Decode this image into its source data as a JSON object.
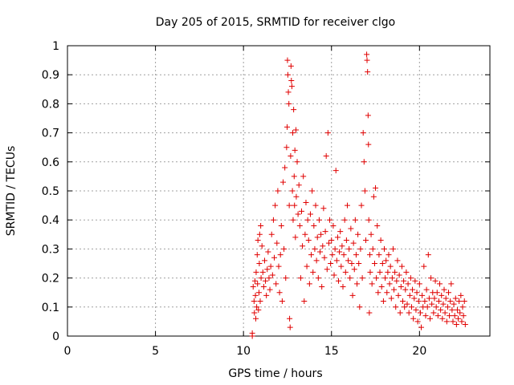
{
  "chart_data": {
    "type": "scatter",
    "title": "Day 205 of 2015, SRMTID for receiver clgo",
    "xlabel": "GPS time / hours",
    "ylabel": "SRMTID / TECUs",
    "xlim": [
      0,
      24
    ],
    "ylim": [
      0,
      1
    ],
    "xticks": [
      0,
      5,
      10,
      15,
      20
    ],
    "xtick_labels": [
      "0",
      "5",
      "10",
      "15",
      "20"
    ],
    "yticks": [
      0,
      0.1,
      0.2,
      0.3,
      0.4,
      0.5,
      0.6,
      0.7,
      0.8,
      0.9,
      1
    ],
    "ytick_labels": [
      "0",
      "0.1",
      "0.2",
      "0.3",
      "0.4",
      "0.5",
      "0.6",
      "0.7",
      "0.8",
      "0.9",
      "1"
    ],
    "grid": true,
    "marker": "plus",
    "color": "#e00000",
    "series": [
      {
        "name": "SRMTID",
        "points": [
          [
            10.5,
            0.0
          ],
          [
            10.5,
            0.01
          ],
          [
            10.55,
            0.17
          ],
          [
            10.6,
            0.12
          ],
          [
            10.62,
            0.08
          ],
          [
            10.65,
            0.19
          ],
          [
            10.68,
            0.14
          ],
          [
            10.7,
            0.06
          ],
          [
            10.72,
            0.22
          ],
          [
            10.75,
            0.1
          ],
          [
            10.78,
            0.28
          ],
          [
            10.8,
            0.18
          ],
          [
            10.82,
            0.33
          ],
          [
            10.85,
            0.09
          ],
          [
            10.88,
            0.15
          ],
          [
            10.9,
            0.25
          ],
          [
            10.92,
            0.35
          ],
          [
            10.95,
            0.12
          ],
          [
            10.98,
            0.38
          ],
          [
            11.0,
            0.2
          ],
          [
            11.05,
            0.31
          ],
          [
            11.1,
            0.22
          ],
          [
            11.15,
            0.17
          ],
          [
            11.2,
            0.26
          ],
          [
            11.25,
            0.19
          ],
          [
            11.3,
            0.14
          ],
          [
            11.35,
            0.23
          ],
          [
            11.4,
            0.29
          ],
          [
            11.45,
            0.2
          ],
          [
            11.5,
            0.16
          ],
          [
            11.55,
            0.24
          ],
          [
            11.6,
            0.35
          ],
          [
            11.65,
            0.21
          ],
          [
            11.7,
            0.4
          ],
          [
            11.75,
            0.27
          ],
          [
            11.8,
            0.45
          ],
          [
            11.85,
            0.18
          ],
          [
            11.9,
            0.32
          ],
          [
            11.95,
            0.5
          ],
          [
            12.0,
            0.24
          ],
          [
            12.05,
            0.15
          ],
          [
            12.1,
            0.28
          ],
          [
            12.15,
            0.38
          ],
          [
            12.2,
            0.12
          ],
          [
            12.25,
            0.53
          ],
          [
            12.3,
            0.3
          ],
          [
            12.35,
            0.58
          ],
          [
            12.4,
            0.2
          ],
          [
            12.45,
            0.65
          ],
          [
            12.48,
            0.72
          ],
          [
            12.5,
            0.95
          ],
          [
            12.52,
            0.9
          ],
          [
            12.55,
            0.84
          ],
          [
            12.58,
            0.8
          ],
          [
            12.6,
            0.45
          ],
          [
            12.62,
            0.06
          ],
          [
            12.65,
            0.03
          ],
          [
            12.68,
            0.62
          ],
          [
            12.7,
            0.93
          ],
          [
            12.72,
            0.88
          ],
          [
            12.75,
            0.86
          ],
          [
            12.78,
            0.5
          ],
          [
            12.8,
            0.7
          ],
          [
            12.82,
            0.4
          ],
          [
            12.85,
            0.78
          ],
          [
            12.88,
            0.55
          ],
          [
            12.9,
            0.45
          ],
          [
            12.92,
            0.64
          ],
          [
            12.95,
            0.34
          ],
          [
            12.98,
            0.71
          ],
          [
            13.0,
            0.48
          ],
          [
            13.05,
            0.6
          ],
          [
            13.1,
            0.42
          ],
          [
            13.15,
            0.52
          ],
          [
            13.2,
            0.38
          ],
          [
            13.25,
            0.2
          ],
          [
            13.3,
            0.43
          ],
          [
            13.35,
            0.31
          ],
          [
            13.4,
            0.55
          ],
          [
            13.45,
            0.12
          ],
          [
            13.5,
            0.35
          ],
          [
            13.55,
            0.46
          ],
          [
            13.6,
            0.24
          ],
          [
            13.65,
            0.4
          ],
          [
            13.7,
            0.33
          ],
          [
            13.75,
            0.18
          ],
          [
            13.8,
            0.42
          ],
          [
            13.85,
            0.28
          ],
          [
            13.9,
            0.5
          ],
          [
            13.95,
            0.22
          ],
          [
            14.0,
            0.38
          ],
          [
            14.05,
            0.3
          ],
          [
            14.1,
            0.45
          ],
          [
            14.15,
            0.26
          ],
          [
            14.2,
            0.34
          ],
          [
            14.25,
            0.2
          ],
          [
            14.3,
            0.4
          ],
          [
            14.35,
            0.29
          ],
          [
            14.4,
            0.35
          ],
          [
            14.45,
            0.17
          ],
          [
            14.5,
            0.31
          ],
          [
            14.55,
            0.44
          ],
          [
            14.6,
            0.27
          ],
          [
            14.65,
            0.36
          ],
          [
            14.7,
            0.62
          ],
          [
            14.75,
            0.23
          ],
          [
            14.8,
            0.7
          ],
          [
            14.85,
            0.32
          ],
          [
            14.9,
            0.4
          ],
          [
            14.95,
            0.25
          ],
          [
            15.0,
            0.33
          ],
          [
            15.05,
            0.28
          ],
          [
            15.1,
            0.38
          ],
          [
            15.15,
            0.21
          ],
          [
            15.2,
            0.3
          ],
          [
            15.25,
            0.57
          ],
          [
            15.3,
            0.26
          ],
          [
            15.35,
            0.34
          ],
          [
            15.4,
            0.19
          ],
          [
            15.45,
            0.29
          ],
          [
            15.5,
            0.36
          ],
          [
            15.55,
            0.24
          ],
          [
            15.6,
            0.31
          ],
          [
            15.65,
            0.17
          ],
          [
            15.7,
            0.28
          ],
          [
            15.75,
            0.4
          ],
          [
            15.8,
            0.22
          ],
          [
            15.85,
            0.33
          ],
          [
            15.9,
            0.45
          ],
          [
            15.95,
            0.26
          ],
          [
            16.0,
            0.3
          ],
          [
            16.05,
            0.2
          ],
          [
            16.1,
            0.37
          ],
          [
            16.15,
            0.25
          ],
          [
            16.2,
            0.14
          ],
          [
            16.25,
            0.32
          ],
          [
            16.3,
            0.23
          ],
          [
            16.35,
            0.4
          ],
          [
            16.4,
            0.28
          ],
          [
            16.45,
            0.18
          ],
          [
            16.5,
            0.35
          ],
          [
            16.55,
            0.25
          ],
          [
            16.6,
            0.1
          ],
          [
            16.65,
            0.3
          ],
          [
            16.7,
            0.45
          ],
          [
            16.75,
            0.2
          ],
          [
            16.8,
            0.7
          ],
          [
            16.85,
            0.6
          ],
          [
            16.9,
            0.5
          ],
          [
            16.95,
            0.33
          ],
          [
            17.0,
            0.97
          ],
          [
            17.02,
            0.95
          ],
          [
            17.05,
            0.91
          ],
          [
            17.08,
            0.76
          ],
          [
            17.1,
            0.66
          ],
          [
            17.12,
            0.4
          ],
          [
            17.15,
            0.08
          ],
          [
            17.18,
            0.28
          ],
          [
            17.2,
            0.22
          ],
          [
            17.25,
            0.35
          ],
          [
            17.3,
            0.18
          ],
          [
            17.35,
            0.3
          ],
          [
            17.4,
            0.48
          ],
          [
            17.45,
            0.25
          ],
          [
            17.5,
            0.51
          ],
          [
            17.55,
            0.2
          ],
          [
            17.6,
            0.38
          ],
          [
            17.65,
            0.15
          ],
          [
            17.7,
            0.28
          ],
          [
            17.75,
            0.22
          ],
          [
            17.8,
            0.33
          ],
          [
            17.85,
            0.17
          ],
          [
            17.9,
            0.25
          ],
          [
            17.95,
            0.12
          ],
          [
            18.0,
            0.3
          ],
          [
            18.05,
            0.2
          ],
          [
            18.1,
            0.26
          ],
          [
            18.15,
            0.15
          ],
          [
            18.2,
            0.22
          ],
          [
            18.25,
            0.28
          ],
          [
            18.3,
            0.18
          ],
          [
            18.35,
            0.24
          ],
          [
            18.4,
            0.13
          ],
          [
            18.45,
            0.2
          ],
          [
            18.5,
            0.3
          ],
          [
            18.55,
            0.16
          ],
          [
            18.6,
            0.22
          ],
          [
            18.65,
            0.1
          ],
          [
            18.7,
            0.19
          ],
          [
            18.75,
            0.26
          ],
          [
            18.8,
            0.14
          ],
          [
            18.85,
            0.21
          ],
          [
            18.9,
            0.08
          ],
          [
            18.95,
            0.17
          ],
          [
            19.0,
            0.24
          ],
          [
            19.05,
            0.12
          ],
          [
            19.1,
            0.19
          ],
          [
            19.15,
            0.1
          ],
          [
            19.2,
            0.16
          ],
          [
            19.25,
            0.22
          ],
          [
            19.3,
            0.11
          ],
          [
            19.35,
            0.18
          ],
          [
            19.4,
            0.08
          ],
          [
            19.45,
            0.14
          ],
          [
            19.5,
            0.2
          ],
          [
            19.55,
            0.1
          ],
          [
            19.6,
            0.16
          ],
          [
            19.65,
            0.06
          ],
          [
            19.7,
            0.13
          ],
          [
            19.75,
            0.19
          ],
          [
            19.8,
            0.09
          ],
          [
            19.85,
            0.15
          ],
          [
            19.9,
            0.05
          ],
          [
            19.95,
            0.12
          ],
          [
            20.0,
            0.18
          ],
          [
            20.05,
            0.08
          ],
          [
            20.1,
            0.03
          ],
          [
            20.15,
            0.14
          ],
          [
            20.2,
            0.1
          ],
          [
            20.25,
            0.24
          ],
          [
            20.3,
            0.12
          ],
          [
            20.35,
            0.07
          ],
          [
            20.4,
            0.16
          ],
          [
            20.45,
            0.1
          ],
          [
            20.5,
            0.28
          ],
          [
            20.55,
            0.13
          ],
          [
            20.6,
            0.06
          ],
          [
            20.65,
            0.2
          ],
          [
            20.7,
            0.11
          ],
          [
            20.75,
            0.15
          ],
          [
            20.8,
            0.08
          ],
          [
            20.85,
            0.13
          ],
          [
            20.9,
            0.19
          ],
          [
            20.95,
            0.1
          ],
          [
            21.0,
            0.15
          ],
          [
            21.05,
            0.07
          ],
          [
            21.1,
            0.12
          ],
          [
            21.15,
            0.18
          ],
          [
            21.2,
            0.09
          ],
          [
            21.25,
            0.14
          ],
          [
            21.3,
            0.06
          ],
          [
            21.35,
            0.11
          ],
          [
            21.4,
            0.16
          ],
          [
            21.45,
            0.08
          ],
          [
            21.5,
            0.13
          ],
          [
            21.55,
            0.05
          ],
          [
            21.6,
            0.1
          ],
          [
            21.65,
            0.15
          ],
          [
            21.7,
            0.07
          ],
          [
            21.75,
            0.12
          ],
          [
            21.8,
            0.18
          ],
          [
            21.85,
            0.09
          ],
          [
            21.9,
            0.05
          ],
          [
            21.95,
            0.11
          ],
          [
            22.0,
            0.07
          ],
          [
            22.05,
            0.13
          ],
          [
            22.1,
            0.04
          ],
          [
            22.15,
            0.09
          ],
          [
            22.2,
            0.06
          ],
          [
            22.25,
            0.12
          ],
          [
            22.3,
            0.08
          ],
          [
            22.35,
            0.14
          ],
          [
            22.4,
            0.05
          ],
          [
            22.45,
            0.1
          ],
          [
            22.5,
            0.07
          ],
          [
            22.55,
            0.12
          ],
          [
            22.6,
            0.04
          ]
        ]
      }
    ]
  }
}
